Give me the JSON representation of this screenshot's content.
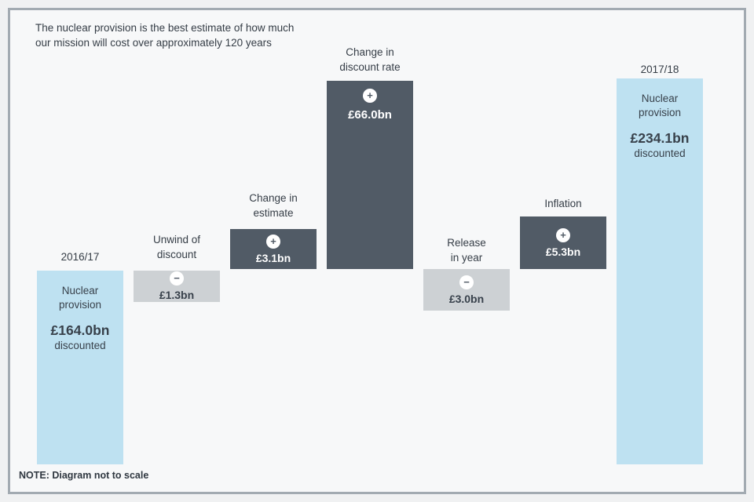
{
  "intro": {
    "line1": "The nuclear provision is the best estimate of how much",
    "line2": "our mission will cost over approximately 120 years"
  },
  "note": "NOTE: Diagram not to scale",
  "palette": {
    "total_bar": "#bee1f1",
    "decrease_bar": "#cdd1d4",
    "increase_bar": "#515b66",
    "frame_border": "#a2aab1",
    "background": "#f7f8f9",
    "text": "#353d46"
  },
  "chart_data": {
    "type": "bar",
    "subtype": "waterfall",
    "title": "The nuclear provision is the best estimate of how much our mission will cost over approximately 120 years",
    "note": "NOTE: Diagram not to scale",
    "unit": "£bn",
    "grid": false,
    "legend": false,
    "categories": [
      "2016/17 Nuclear provision",
      "Unwind of discount",
      "Change in estimate",
      "Change in discount rate",
      "Release in year",
      "Inflation",
      "2017/18 Nuclear provision"
    ],
    "values": [
      164.0,
      -1.3,
      3.1,
      66.0,
      -3.0,
      5.3,
      234.1
    ],
    "columns": [
      {
        "label_line1": "2016/17",
        "bar_line1": "Nuclear",
        "bar_line2": "provision",
        "amount": "£164.0bn",
        "suffix": "discounted",
        "value": 164.0,
        "role": "total"
      },
      {
        "label_line1": "Unwind of",
        "label_line2": "discount",
        "sign": "−",
        "amount": "£1.3bn",
        "value": -1.3,
        "role": "decrease"
      },
      {
        "label_line1": "Change in",
        "label_line2": "estimate",
        "sign": "+",
        "amount": "£3.1bn",
        "value": 3.1,
        "role": "increase"
      },
      {
        "label_line1": "Change in",
        "label_line2": "discount rate",
        "sign": "+",
        "amount": "£66.0bn",
        "value": 66.0,
        "role": "increase"
      },
      {
        "label_line1": "Release",
        "label_line2": "in year",
        "sign": "−",
        "amount": "£3.0bn",
        "value": -3.0,
        "role": "decrease"
      },
      {
        "label_line1": "Inflation",
        "sign": "+",
        "amount": "£5.3bn",
        "value": 5.3,
        "role": "increase"
      },
      {
        "label_line1": "2017/18",
        "bar_line1": "Nuclear",
        "bar_line2": "provision",
        "amount": "£234.1bn",
        "suffix": "discounted",
        "value": 234.1,
        "role": "total"
      }
    ]
  }
}
